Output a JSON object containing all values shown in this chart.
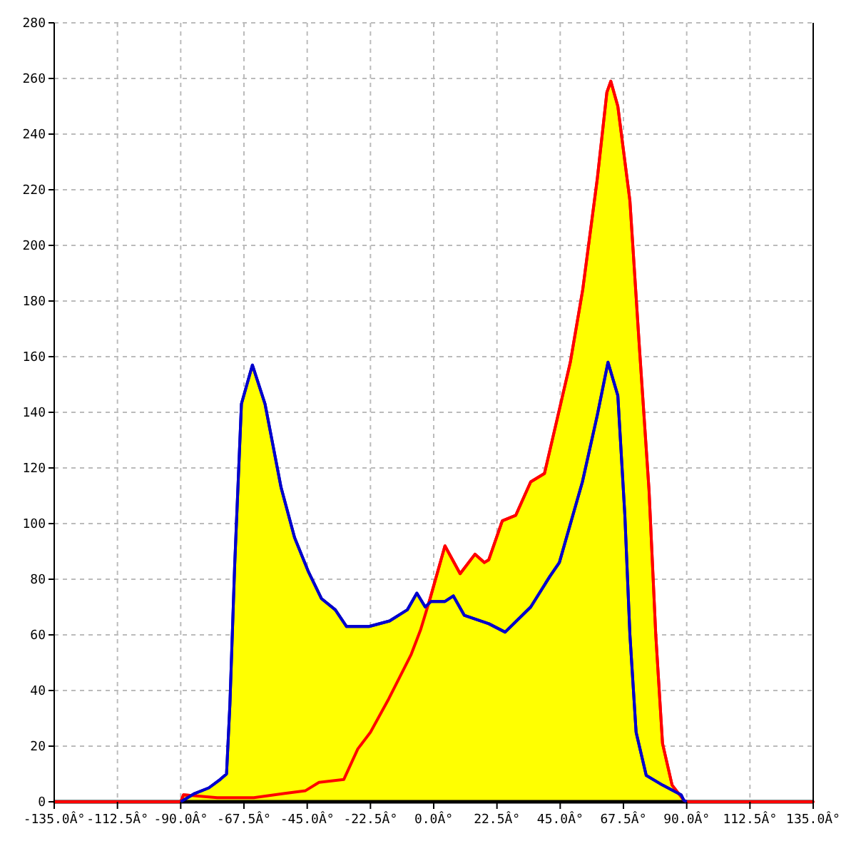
{
  "chart_data": {
    "type": "area",
    "xlim": [
      -135,
      135
    ],
    "ylim": [
      0,
      280
    ],
    "xticks": [
      {
        "value": -135,
        "label": "-135.0Â°"
      },
      {
        "value": -112.5,
        "label": "-112.5Â°"
      },
      {
        "value": -90,
        "label": "-90.0Â°"
      },
      {
        "value": -67.5,
        "label": "-67.5Â°"
      },
      {
        "value": -45,
        "label": "-45.0Â°"
      },
      {
        "value": -22.5,
        "label": "-22.5Â°"
      },
      {
        "value": 0,
        "label": "0.0Â°"
      },
      {
        "value": 22.5,
        "label": "22.5Â°"
      },
      {
        "value": 45,
        "label": "45.0Â°"
      },
      {
        "value": 67.5,
        "label": "67.5Â°"
      },
      {
        "value": 90,
        "label": "90.0Â°"
      },
      {
        "value": 112.5,
        "label": "112.5Â°"
      },
      {
        "value": 135,
        "label": "135.0Â°"
      }
    ],
    "yticks": [
      0,
      20,
      40,
      60,
      80,
      100,
      120,
      140,
      160,
      180,
      200,
      220,
      240,
      260,
      280
    ],
    "grid": true,
    "line_style": "solid",
    "series": [
      {
        "color": "#ff0000",
        "x": [
          -135,
          -90,
          -89,
          -83,
          -77,
          -64,
          -53,
          -45.6,
          -40.8,
          -32,
          -27,
          -22.5,
          -16,
          -8,
          -4.6,
          -1.3,
          4,
          9.4,
          14.7,
          18,
          19.6,
          24.4,
          29.2,
          34.5,
          39.4,
          44.7,
          48.6,
          53,
          58.2,
          61.6,
          63,
          65.5,
          69.8,
          73.2,
          76.6,
          79,
          81.4,
          84.8,
          89,
          90,
          135
        ],
        "values": [
          0,
          0,
          2.5,
          2,
          1.5,
          1.5,
          3,
          4,
          7,
          8,
          19,
          25,
          37,
          53,
          62,
          73,
          92,
          82,
          89,
          86,
          87,
          101,
          103,
          115,
          118,
          141,
          158,
          184,
          224,
          255,
          259,
          250,
          216,
          163,
          112,
          60,
          21,
          6,
          0.5,
          0,
          0
        ]
      },
      {
        "color": "#0000cc",
        "x": [
          -90,
          -85,
          -80,
          -76,
          -73.7,
          -72.5,
          -70.8,
          -68.4,
          -64.5,
          -60,
          -54.3,
          -49.5,
          -44.7,
          -39.9,
          -35,
          -31,
          -23,
          -15.7,
          -9.4,
          -6,
          -3,
          -1,
          2,
          4,
          7,
          10.9,
          19.6,
          25.4,
          34.5,
          41.3,
          44.7,
          52.9,
          58.2,
          62,
          65.5,
          68,
          69.8,
          72,
          75.6,
          81.4,
          88,
          89,
          90
        ],
        "values": [
          0,
          3,
          5,
          8,
          10,
          35,
          85,
          143,
          157,
          143,
          113,
          95,
          83,
          73,
          69,
          63,
          63,
          65,
          69,
          75,
          70,
          72,
          72,
          72,
          74,
          67,
          64,
          61,
          70,
          81,
          86,
          115,
          139,
          158,
          146,
          103,
          60,
          25,
          9.5,
          6,
          2.5,
          0.5,
          0
        ]
      }
    ]
  }
}
